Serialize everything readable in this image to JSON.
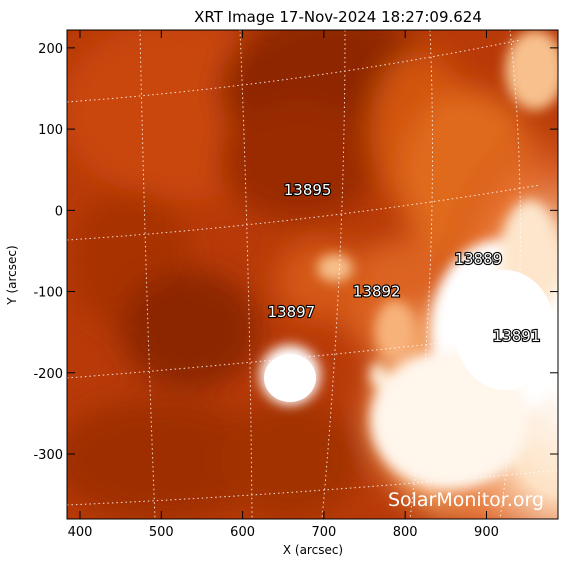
{
  "title": "XRT Image 17-Nov-2024 18:27:09.624",
  "xlabel": "X (arcsec)",
  "ylabel": "Y (arcsec)",
  "xlim": [
    384,
    988
  ],
  "ylim": [
    -380,
    222
  ],
  "xticks": [
    400,
    500,
    600,
    700,
    800,
    900
  ],
  "yticks": [
    200,
    100,
    0,
    -100,
    -200,
    -300
  ],
  "regions": [
    {
      "label": "13895",
      "x": 680,
      "y": 25
    },
    {
      "label": "13889",
      "x": 890,
      "y": -60
    },
    {
      "label": "13892",
      "x": 765,
      "y": -100
    },
    {
      "label": "13897",
      "x": 660,
      "y": -125
    },
    {
      "label": "13891",
      "x": 937,
      "y": -155
    }
  ],
  "watermark": "SolarMonitor.org",
  "colors": {
    "dark": "#7a1e02",
    "mid": "#c4400a",
    "bright": "#f28a3a",
    "saturated": "#fff4e6",
    "grid": "#ffffff"
  }
}
